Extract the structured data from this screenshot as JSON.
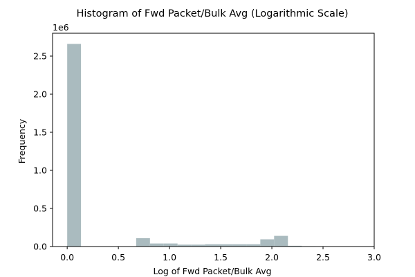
{
  "chart_data": {
    "type": "bar",
    "title": "Histogram of Fwd Packet/Bulk Avg (Logarithmic Scale)",
    "xlabel": "Log of Fwd Packet/Bulk Avg",
    "ylabel": "Frequency",
    "y_offset_label": "1e6",
    "xlim": [
      -0.143,
      3.0
    ],
    "ylim": [
      0,
      2.8
    ],
    "x_ticks": [
      0.0,
      0.5,
      1.0,
      1.5,
      2.0,
      2.5,
      3.0
    ],
    "x_tick_labels": [
      "0.0",
      "0.5",
      "1.0",
      "1.5",
      "2.0",
      "2.5",
      "3.0"
    ],
    "y_ticks": [
      0.0,
      0.5,
      1.0,
      1.5,
      2.0,
      2.5
    ],
    "y_tick_labels": [
      "0.0",
      "0.5",
      "1.0",
      "1.5",
      "2.0",
      "2.5"
    ],
    "bin_width": 0.1348,
    "bins": [
      {
        "x0": 0.0,
        "value": 2.66
      },
      {
        "x0": 0.1348,
        "value": 0.0
      },
      {
        "x0": 0.2696,
        "value": 0.0
      },
      {
        "x0": 0.4044,
        "value": 0.0
      },
      {
        "x0": 0.5392,
        "value": 0.0
      },
      {
        "x0": 0.674,
        "value": 0.11
      },
      {
        "x0": 0.8088,
        "value": 0.04
      },
      {
        "x0": 0.9436,
        "value": 0.04
      },
      {
        "x0": 1.0784,
        "value": 0.025
      },
      {
        "x0": 1.2132,
        "value": 0.025
      },
      {
        "x0": 1.348,
        "value": 0.03
      },
      {
        "x0": 1.4828,
        "value": 0.03
      },
      {
        "x0": 1.6176,
        "value": 0.03
      },
      {
        "x0": 1.7524,
        "value": 0.03
      },
      {
        "x0": 1.8872,
        "value": 0.095
      },
      {
        "x0": 2.022,
        "value": 0.14
      },
      {
        "x0": 2.1568,
        "value": 0.01
      },
      {
        "x0": 2.2916,
        "value": 0.005
      },
      {
        "x0": 2.4264,
        "value": 0.003
      },
      {
        "x0": 2.5612,
        "value": 0.002
      },
      {
        "x0": 2.696,
        "value": 0.001
      }
    ],
    "bar_color": "#aabbbf",
    "grid": false,
    "legend": false
  }
}
